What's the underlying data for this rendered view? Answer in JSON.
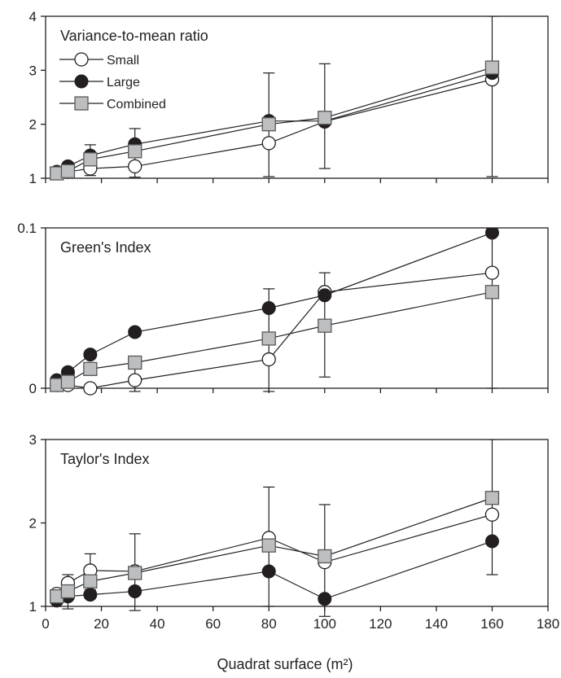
{
  "chart_data": [
    {
      "type": "line",
      "title": "Variance-to-mean ratio",
      "xlabel": "",
      "ylabel": "",
      "xlim": [
        0,
        180
      ],
      "ylim": [
        1,
        4
      ],
      "yticks": [
        "1",
        "2",
        "3",
        "4"
      ],
      "legend": {
        "placement": "top-left",
        "entries": [
          "Small",
          "Large",
          "Combined"
        ]
      },
      "series": [
        {
          "name": "Small",
          "marker": "open-circle",
          "x": [
            4,
            8,
            16,
            32,
            80,
            100,
            160
          ],
          "y": [
            1.1,
            1.12,
            1.18,
            1.22,
            1.65,
            2.05,
            2.83
          ]
        },
        {
          "name": "Large",
          "marker": "filled-circle",
          "x": [
            4,
            8,
            16,
            32,
            80,
            100,
            160
          ],
          "y": [
            1.12,
            1.22,
            1.42,
            1.63,
            2.06,
            2.06,
            2.95
          ]
        },
        {
          "name": "Combined",
          "marker": "gray-square",
          "x": [
            4,
            8,
            16,
            32,
            80,
            100,
            160
          ],
          "y": [
            1.09,
            1.13,
            1.35,
            1.5,
            2.0,
            2.12,
            3.05
          ]
        }
      ],
      "error_bars": [
        {
          "x": 8,
          "low": 1.05,
          "high": 1.28
        },
        {
          "x": 16,
          "low": 1.05,
          "high": 1.62
        },
        {
          "x": 32,
          "low": 1.02,
          "high": 1.92
        },
        {
          "x": 80,
          "low": 1.03,
          "high": 2.95
        },
        {
          "x": 100,
          "low": 1.18,
          "high": 3.12
        },
        {
          "x": 160,
          "low": 1.03,
          "high": 4.0
        }
      ]
    },
    {
      "type": "line",
      "title": "Green's Index",
      "xlabel": "",
      "ylabel": "",
      "xlim": [
        0,
        180
      ],
      "ylim": [
        0,
        0.1
      ],
      "yticks": [
        "0",
        "0.1"
      ],
      "series": [
        {
          "name": "Small",
          "marker": "open-circle",
          "x": [
            4,
            8,
            16,
            32,
            80,
            100,
            160
          ],
          "y": [
            0.002,
            0.002,
            0.0,
            0.005,
            0.018,
            0.06,
            0.072
          ]
        },
        {
          "name": "Large",
          "marker": "filled-circle",
          "x": [
            4,
            8,
            16,
            32,
            80,
            100,
            160
          ],
          "y": [
            0.005,
            0.01,
            0.021,
            0.035,
            0.05,
            0.058,
            0.097
          ]
        },
        {
          "name": "Combined",
          "marker": "gray-square",
          "x": [
            4,
            8,
            16,
            32,
            80,
            100,
            160
          ],
          "y": [
            0.002,
            0.004,
            0.012,
            0.016,
            0.031,
            0.039,
            0.06
          ]
        }
      ],
      "error_bars": [
        {
          "x": 8,
          "low": 0.0,
          "high": 0.009
        },
        {
          "x": 32,
          "low": -0.002,
          "high": 0.013
        },
        {
          "x": 80,
          "low": -0.002,
          "high": 0.062
        },
        {
          "x": 100,
          "low": 0.007,
          "high": 0.072
        },
        {
          "x": 160,
          "low": 0.0,
          "high": 0.1
        }
      ]
    },
    {
      "type": "line",
      "title": "Taylor's Index",
      "xlabel": "Quadrat surface (m²)",
      "ylabel": "",
      "xlim": [
        0,
        180
      ],
      "ylim": [
        1,
        3
      ],
      "xticks": [
        "0",
        "20",
        "40",
        "60",
        "80",
        "100",
        "120",
        "140",
        "160",
        "180"
      ],
      "yticks": [
        "1",
        "2",
        "3"
      ],
      "series": [
        {
          "name": "Small",
          "marker": "open-circle",
          "x": [
            4,
            8,
            16,
            32,
            80,
            100,
            160
          ],
          "y": [
            1.15,
            1.28,
            1.43,
            1.42,
            1.82,
            1.53,
            2.1
          ]
        },
        {
          "name": "Large",
          "marker": "filled-circle",
          "x": [
            4,
            8,
            16,
            32,
            80,
            100,
            160
          ],
          "y": [
            1.07,
            1.12,
            1.14,
            1.18,
            1.42,
            1.09,
            1.78
          ]
        },
        {
          "name": "Combined",
          "marker": "gray-square",
          "x": [
            4,
            8,
            16,
            32,
            80,
            100,
            160
          ],
          "y": [
            1.12,
            1.18,
            1.3,
            1.4,
            1.73,
            1.6,
            2.3
          ]
        }
      ],
      "error_bars": [
        {
          "x": 8,
          "low": 0.97,
          "high": 1.38
        },
        {
          "x": 16,
          "low": 1.2,
          "high": 1.63
        },
        {
          "x": 32,
          "low": 0.95,
          "high": 1.87
        },
        {
          "x": 80,
          "low": 1.0,
          "high": 2.43
        },
        {
          "x": 100,
          "low": 0.88,
          "high": 2.22
        },
        {
          "x": 160,
          "low": 1.38,
          "high": 3.0
        }
      ]
    }
  ],
  "colors": {
    "ink": "#231f20",
    "square_fill": "#bcbec0",
    "square_stroke": "#58595b",
    "open_fill": "#ffffff"
  }
}
